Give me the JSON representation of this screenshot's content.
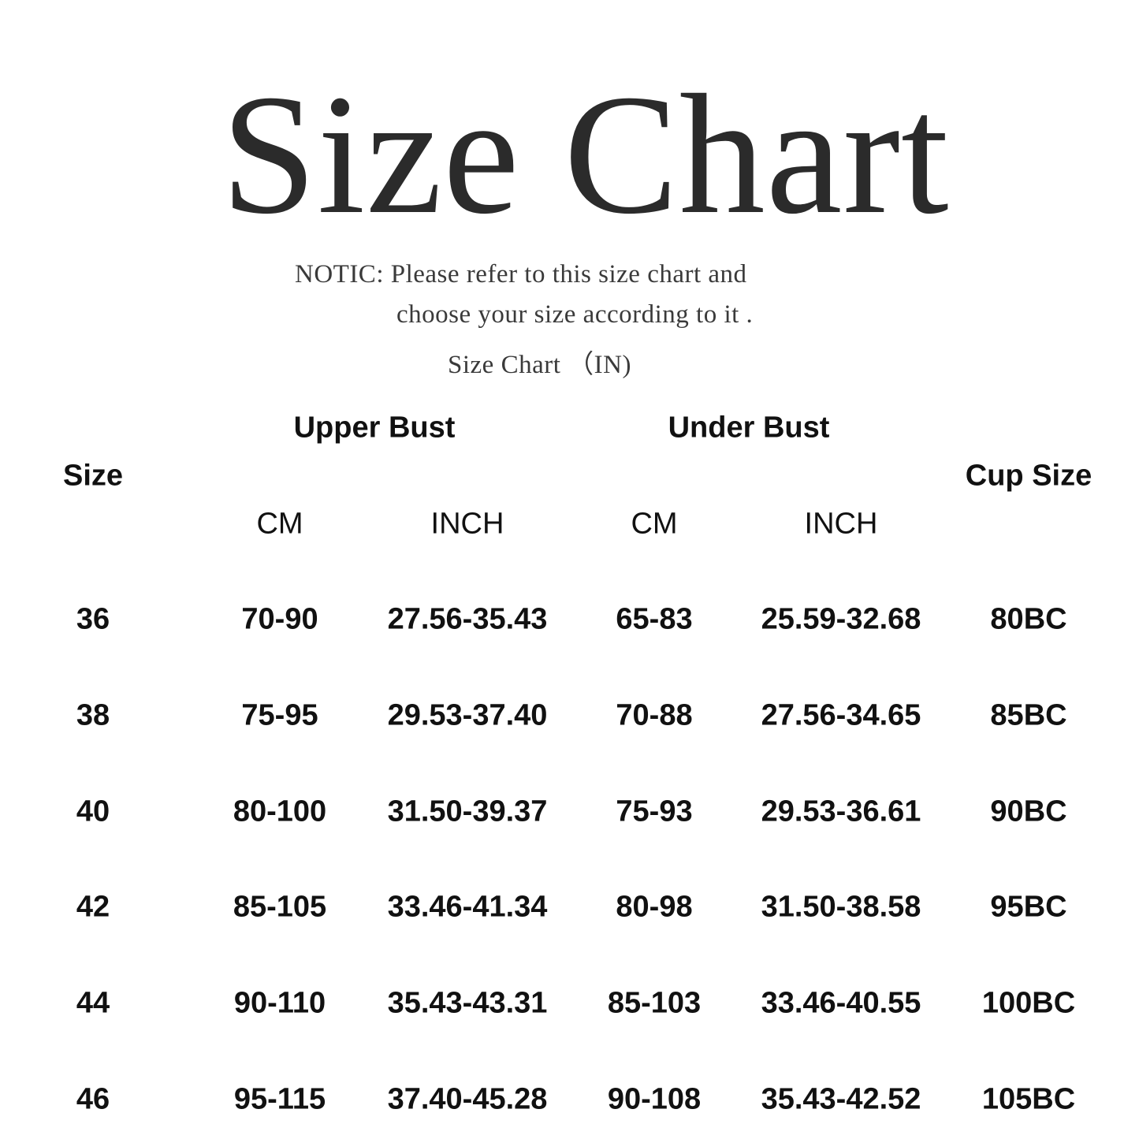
{
  "title": "Size Chart",
  "notice": {
    "line1": "NOTIC: Please refer to this size chart and",
    "line2": "choose your size according to it .",
    "line3": "Size Chart （IN)"
  },
  "table": {
    "headers": {
      "size": "Size",
      "upper_bust": "Upper Bust",
      "under_bust": "Under Bust",
      "cup_size": "Cup Size",
      "upper_cm": "CM",
      "upper_inch": "INCH",
      "under_cm": "CM",
      "under_inch": "INCH"
    },
    "rows": [
      [
        "36",
        "70-90",
        "27.56-35.43",
        "65-83",
        "25.59-32.68",
        "80BC"
      ],
      [
        "38",
        "75-95",
        "29.53-37.40",
        "70-88",
        "27.56-34.65",
        "85BC"
      ],
      [
        "40",
        "80-100",
        "31.50-39.37",
        "75-93",
        "29.53-36.61",
        "90BC"
      ],
      [
        "42",
        "85-105",
        "33.46-41.34",
        "80-98",
        "31.50-38.58",
        "95BC"
      ],
      [
        "44",
        "90-110",
        "35.43-43.31",
        "85-103",
        "33.46-40.55",
        "100BC"
      ],
      [
        "46",
        "95-115",
        "37.40-45.28",
        "90-108",
        "35.43-42.52",
        "105BC"
      ]
    ]
  }
}
